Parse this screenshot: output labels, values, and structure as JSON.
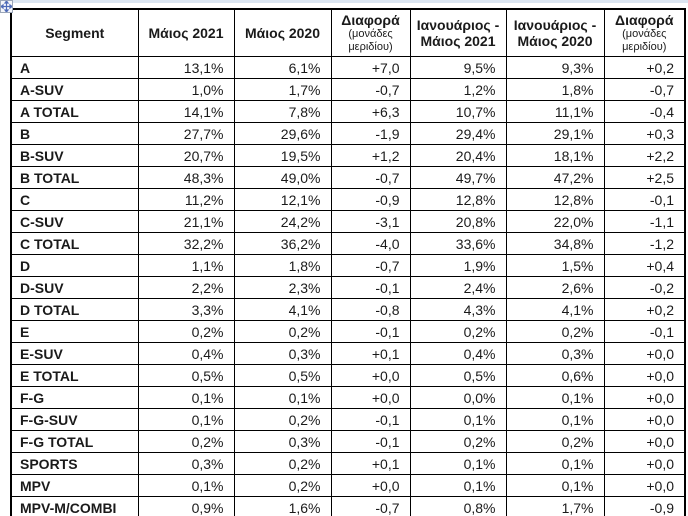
{
  "page": {
    "background_color": "#ffffff",
    "top_strip_color": "#dbe5f1",
    "border_color": "#000000",
    "text_color": "#1a1a1a",
    "handle_arrow_color": "#4f6bb8"
  },
  "icons": {
    "table_move_handle": "move-cross-arrows"
  },
  "table": {
    "columns": [
      {
        "key": "segment",
        "label": "Segment",
        "sub": ""
      },
      {
        "key": "may_2021",
        "label": "Μάιος 2021",
        "sub": ""
      },
      {
        "key": "may_2020",
        "label": "Μάιος 2020",
        "sub": ""
      },
      {
        "key": "diff_may",
        "label": "Διαφορά",
        "sub": "(μονάδες μεριδίου)"
      },
      {
        "key": "jan_may_2021",
        "label": "Ιανουάριος - Μάιος 2021",
        "sub": ""
      },
      {
        "key": "jan_may_2020",
        "label": "Ιανουάριος - Μάιος 2020",
        "sub": ""
      },
      {
        "key": "diff_janmay",
        "label": "Διαφορά",
        "sub": "(μονάδες μεριδίου)"
      }
    ],
    "rows": [
      [
        "A",
        "13,1%",
        "6,1%",
        "+7,0",
        "9,5%",
        "9,3%",
        "+0,2"
      ],
      [
        "A-SUV",
        "1,0%",
        "1,7%",
        "-0,7",
        "1,2%",
        "1,8%",
        "-0,7"
      ],
      [
        "A TOTAL",
        "14,1%",
        "7,8%",
        "+6,3",
        "10,7%",
        "11,1%",
        "-0,4"
      ],
      [
        "B",
        "27,7%",
        "29,6%",
        "-1,9",
        "29,4%",
        "29,1%",
        "+0,3"
      ],
      [
        "B-SUV",
        "20,7%",
        "19,5%",
        "+1,2",
        "20,4%",
        "18,1%",
        "+2,2"
      ],
      [
        "B TOTAL",
        "48,3%",
        "49,0%",
        "-0,7",
        "49,7%",
        "47,2%",
        "+2,5"
      ],
      [
        "C",
        "11,2%",
        "12,1%",
        "-0,9",
        "12,8%",
        "12,8%",
        "-0,1"
      ],
      [
        "C-SUV",
        "21,1%",
        "24,2%",
        "-3,1",
        "20,8%",
        "22,0%",
        "-1,1"
      ],
      [
        "C TOTAL",
        "32,2%",
        "36,2%",
        "-4,0",
        "33,6%",
        "34,8%",
        "-1,2"
      ],
      [
        "D",
        "1,1%",
        "1,8%",
        "-0,7",
        "1,9%",
        "1,5%",
        "+0,4"
      ],
      [
        "D-SUV",
        "2,2%",
        "2,3%",
        "-0,1",
        "2,4%",
        "2,6%",
        "-0,2"
      ],
      [
        "D TOTAL",
        "3,3%",
        "4,1%",
        "-0,8",
        "4,3%",
        "4,1%",
        "+0,2"
      ],
      [
        "E",
        "0,2%",
        "0,2%",
        "-0,1",
        "0,2%",
        "0,2%",
        "-0,1"
      ],
      [
        "E-SUV",
        "0,4%",
        "0,3%",
        "+0,1",
        "0,4%",
        "0,3%",
        "+0,0"
      ],
      [
        "E TOTAL",
        "0,5%",
        "0,5%",
        "+0,0",
        "0,5%",
        "0,6%",
        "+0,0"
      ],
      [
        "F-G",
        "0,1%",
        "0,1%",
        "+0,0",
        "0,0%",
        "0,1%",
        "+0,0"
      ],
      [
        "F-G-SUV",
        "0,1%",
        "0,2%",
        "-0,1",
        "0,1%",
        "0,1%",
        "+0,0"
      ],
      [
        "F-G TOTAL",
        "0,2%",
        "0,3%",
        "-0,1",
        "0,2%",
        "0,2%",
        "+0,0"
      ],
      [
        "SPORTS",
        "0,3%",
        "0,2%",
        "+0,1",
        "0,1%",
        "0,1%",
        "+0,0"
      ],
      [
        "MPV",
        "0,1%",
        "0,2%",
        "+0,0",
        "0,1%",
        "0,1%",
        "+0,0"
      ],
      [
        "MPV-M/COMBI",
        "0,9%",
        "1,6%",
        "-0,7",
        "0,8%",
        "1,7%",
        "-0,9"
      ]
    ]
  }
}
